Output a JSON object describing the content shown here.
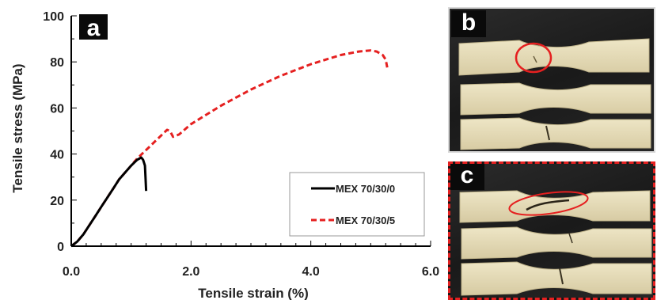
{
  "chart_data": {
    "type": "line",
    "panel_label": "a",
    "xlabel": "Tensile strain (%)",
    "ylabel": "Tensile stress (MPa)",
    "xlim": [
      0,
      6
    ],
    "ylim": [
      0,
      100
    ],
    "x_ticks": [
      "0.0",
      "2.0",
      "4.0",
      "6.0"
    ],
    "y_ticks": [
      "0",
      "20",
      "40",
      "60",
      "80",
      "100"
    ],
    "legend_position": "bottom-right",
    "series": [
      {
        "name": "MEX 70/30/0",
        "color": "#000000",
        "dash": "solid",
        "x": [
          0,
          0.1,
          0.2,
          0.3,
          0.4,
          0.5,
          0.6,
          0.7,
          0.8,
          0.9,
          1.0,
          1.1,
          1.17,
          1.2,
          1.23,
          1.24,
          1.25
        ],
        "y": [
          0,
          2,
          5,
          9,
          13,
          17,
          21,
          25,
          29,
          32,
          35,
          37.5,
          38.5,
          37.5,
          35,
          30,
          24
        ]
      },
      {
        "name": "MEX 70/30/5",
        "color": "#e52020",
        "dash": "dashed",
        "x": [
          0,
          0.1,
          0.2,
          0.3,
          0.4,
          0.5,
          0.6,
          0.7,
          0.8,
          0.9,
          1.0,
          1.1,
          1.2,
          1.3,
          1.4,
          1.5,
          1.6,
          1.65,
          1.7,
          1.75,
          1.8,
          2.0,
          2.5,
          3.0,
          3.5,
          4.0,
          4.5,
          4.8,
          5.0,
          5.1,
          5.2,
          5.25,
          5.28
        ],
        "y": [
          0,
          2,
          5,
          9,
          13,
          17,
          21,
          25,
          29,
          32,
          35,
          38,
          40.5,
          43,
          45.5,
          48,
          50.5,
          50,
          47.5,
          48,
          48.5,
          53,
          61,
          68,
          74,
          79,
          83,
          84.5,
          85,
          84.5,
          83,
          81,
          77
        ]
      }
    ]
  },
  "photos": {
    "top": {
      "label": "b",
      "highlight_color": "#e52020"
    },
    "bottom": {
      "label": "c",
      "frame_color": "#e52020"
    }
  }
}
